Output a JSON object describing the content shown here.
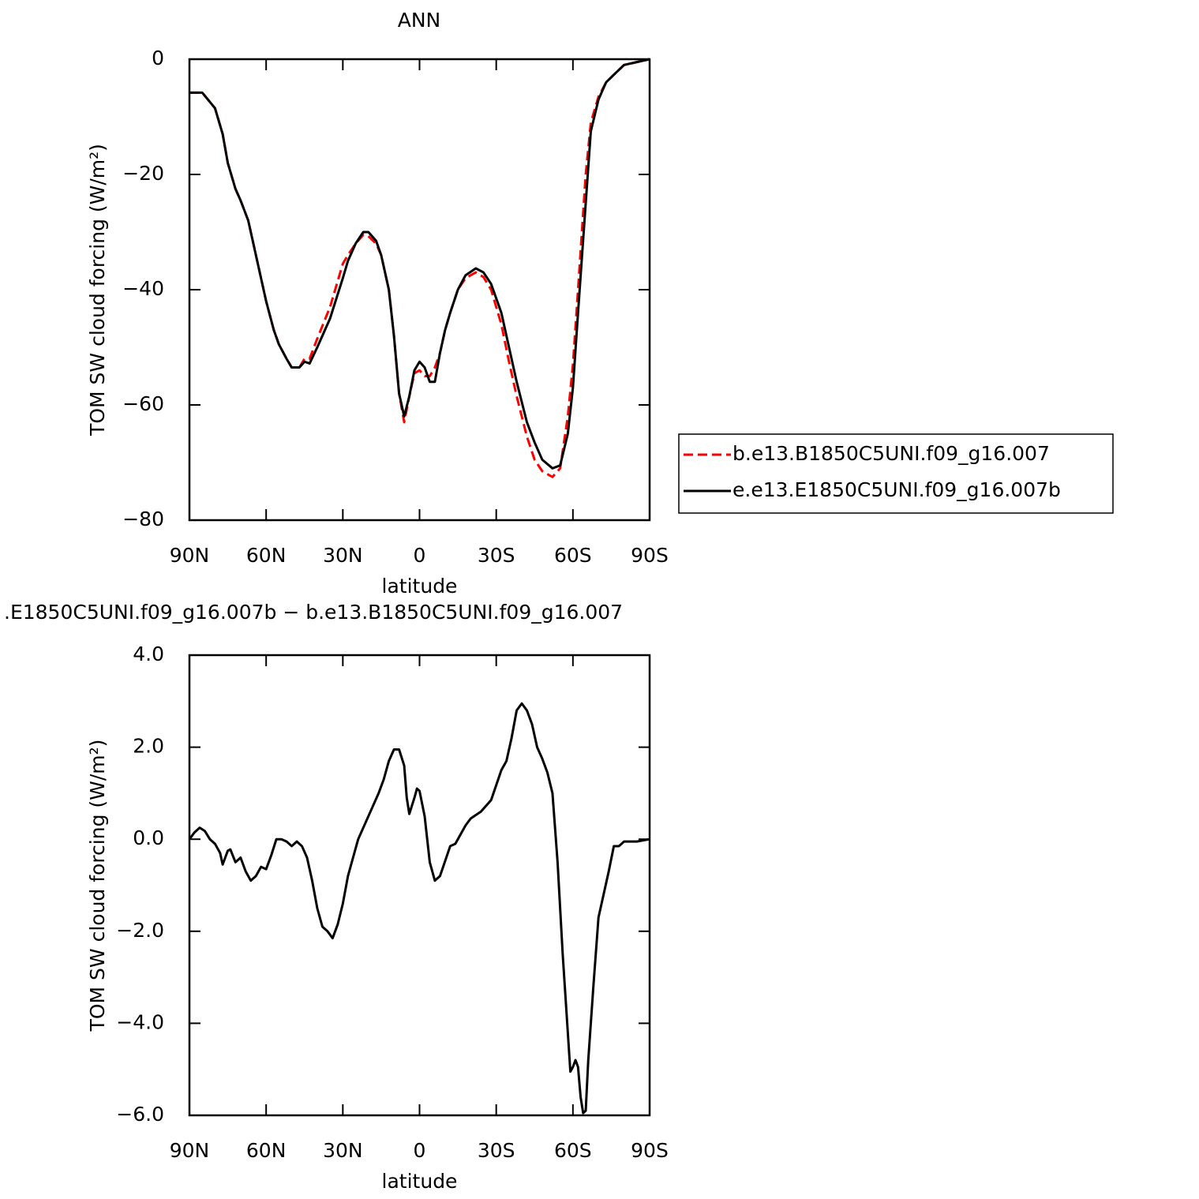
{
  "chart_data": [
    {
      "type": "line",
      "title": "ANN",
      "xlabel": "latitude",
      "ylabel": "TOM SW cloud forcing (W/m²)",
      "x": [
        90,
        85,
        80,
        77,
        75,
        72,
        70,
        67,
        65,
        62,
        60,
        57,
        55,
        52,
        50,
        47,
        45,
        43,
        40,
        35,
        30,
        28,
        25,
        22,
        20,
        17,
        15,
        12,
        10,
        8,
        6,
        4,
        2,
        0,
        -2,
        -4,
        -6,
        -8,
        -10,
        -12,
        -15,
        -18,
        -22,
        -25,
        -28,
        -32,
        -35,
        -38,
        -42,
        -45,
        -48,
        -52,
        -55,
        -58,
        -60,
        -62,
        -65,
        -67,
        -70,
        -73,
        -76,
        -80,
        -85,
        -90
      ],
      "series": [
        {
          "name": "b.e13.B1850C5UNI.f09_g16.007",
          "color": "#ff0000",
          "dashed": true,
          "values": [
            -5.8,
            -5.8,
            -8.5,
            -13,
            -18,
            -22.5,
            -24.5,
            -28,
            -32,
            -38,
            -42,
            -47,
            -49.5,
            -52,
            -53.5,
            -53.5,
            -52,
            -52,
            -48.5,
            -43,
            -35.5,
            -34,
            -32,
            -30.5,
            -30.7,
            -32,
            -34,
            -40,
            -48,
            -58,
            -63,
            -58.5,
            -54.5,
            -54,
            -55,
            -55,
            -53.5,
            -51,
            -47,
            -44,
            -40,
            -38,
            -37,
            -37.8,
            -40,
            -46,
            -52.5,
            -58.5,
            -65.5,
            -69.5,
            -71.5,
            -72.5,
            -71,
            -62,
            -53,
            -40,
            -20,
            -11,
            -6.5,
            -4,
            -2.7,
            -1,
            -0.5,
            0
          ]
        },
        {
          "name": "e.e13.E1850C5UNI.f09_g16.007b",
          "color": "#000000",
          "dashed": false,
          "values": [
            -5.8,
            -5.8,
            -8.5,
            -13,
            -18,
            -22.5,
            -24.5,
            -28,
            -32,
            -38,
            -42,
            -47,
            -49.5,
            -52,
            -53.5,
            -53.5,
            -52.5,
            -52.8,
            -50,
            -45,
            -38,
            -35,
            -32,
            -30,
            -30,
            -31.5,
            -34,
            -40,
            -48,
            -58,
            -62,
            -58.5,
            -54,
            -52.5,
            -53.5,
            -56,
            -56,
            -51,
            -47,
            -44,
            -40,
            -37.5,
            -36.3,
            -37,
            -39,
            -44,
            -50,
            -56,
            -63,
            -66.5,
            -69.5,
            -71,
            -70.5,
            -65,
            -57,
            -44,
            -25,
            -12.5,
            -7,
            -4,
            -2.7,
            -1,
            -0.5,
            0
          ]
        }
      ],
      "xlim": [
        90,
        -90
      ],
      "xticks": [
        {
          "value": 90,
          "label": "90N"
        },
        {
          "value": 60,
          "label": "60N"
        },
        {
          "value": 30,
          "label": "30N"
        },
        0,
        {
          "value": -30,
          "label": "30S"
        },
        {
          "value": -60,
          "label": "60S"
        },
        {
          "value": -90,
          "label": "90S"
        }
      ],
      "ylim": [
        -80,
        0
      ],
      "yticks": [
        {
          "value": -80,
          "label": "−80"
        },
        {
          "value": -60,
          "label": "−60"
        },
        {
          "value": -40,
          "label": "−40"
        },
        {
          "value": -20,
          "label": "−20"
        },
        0
      ],
      "legend": "right"
    },
    {
      "type": "line",
      "title": ".E1850C5UNI.f09_g16.007b − b.e13.B1850C5UNI.f09_g16.007",
      "xlabel": "latitude",
      "ylabel": "TOM SW cloud forcing (W/m²)",
      "x": [
        90,
        88,
        86,
        84,
        82,
        80,
        78,
        77,
        75,
        74,
        72,
        70,
        68,
        66,
        64,
        62,
        60,
        58,
        56,
        54,
        52,
        50,
        48,
        46,
        44,
        42,
        40,
        38,
        36,
        34,
        32,
        30,
        28,
        26,
        24,
        20,
        16,
        14,
        12,
        10,
        8,
        6,
        5,
        4,
        2,
        1,
        0,
        -2,
        -4,
        -6,
        -8,
        -12,
        -14,
        -18,
        -20,
        -24,
        -28,
        -32,
        -34,
        -36,
        -38,
        -40,
        -42,
        -44,
        -46,
        -48,
        -50,
        -52,
        -54,
        -56,
        -58,
        -59,
        -60,
        -61,
        -62,
        -63,
        -64,
        -65,
        -66,
        -68,
        -70,
        -74,
        -76,
        -78,
        -80,
        -85,
        -90
      ],
      "series": [
        {
          "color": "#000000",
          "dashed": false,
          "values": [
            0.0,
            0.15,
            0.25,
            0.18,
            0.0,
            -0.1,
            -0.3,
            -0.55,
            -0.25,
            -0.22,
            -0.5,
            -0.4,
            -0.7,
            -0.9,
            -0.8,
            -0.6,
            -0.65,
            -0.35,
            0.0,
            0.0,
            -0.05,
            -0.15,
            -0.05,
            -0.15,
            -0.4,
            -0.9,
            -1.5,
            -1.9,
            -2.0,
            -2.15,
            -1.85,
            -1.4,
            -0.8,
            -0.4,
            0.0,
            0.5,
            1.0,
            1.3,
            1.7,
            1.95,
            1.95,
            1.6,
            0.9,
            0.55,
            0.9,
            1.1,
            1.05,
            0.5,
            -0.5,
            -0.9,
            -0.8,
            -0.15,
            -0.1,
            0.3,
            0.45,
            0.6,
            0.85,
            1.5,
            1.7,
            2.2,
            2.8,
            2.95,
            2.8,
            2.5,
            2.0,
            1.75,
            1.45,
            1.0,
            -0.5,
            -2.5,
            -4.2,
            -5.05,
            -4.95,
            -4.8,
            -4.95,
            -5.6,
            -5.95,
            -5.9,
            -4.8,
            -3.2,
            -1.7,
            -0.7,
            -0.15,
            -0.15,
            -0.05,
            -0.05,
            0.0
          ]
        }
      ],
      "xlim": [
        90,
        -90
      ],
      "xticks": [
        {
          "value": 90,
          "label": "90N"
        },
        {
          "value": 60,
          "label": "60N"
        },
        {
          "value": 30,
          "label": "30N"
        },
        0,
        {
          "value": -30,
          "label": "30S"
        },
        {
          "value": -60,
          "label": "60S"
        },
        {
          "value": -90,
          "label": "90S"
        }
      ],
      "ylim": [
        -6,
        4
      ],
      "yticks": [
        {
          "value": -6,
          "label": "−6.0"
        },
        {
          "value": -4,
          "label": "−4.0"
        },
        {
          "value": -2,
          "label": "−2.0"
        },
        {
          "value": 0,
          "label": "0.0"
        },
        {
          "value": 2,
          "label": "2.0"
        },
        {
          "value": 4,
          "label": "4.0"
        }
      ]
    }
  ]
}
